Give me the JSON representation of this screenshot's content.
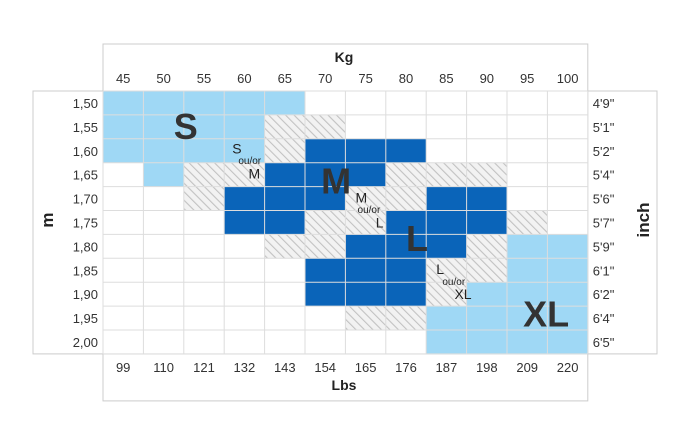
{
  "chart_data": {
    "type": "heatmap",
    "title": "",
    "x_top": {
      "label": "Kg",
      "categories": [
        "45",
        "50",
        "55",
        "60",
        "65",
        "70",
        "75",
        "80",
        "85",
        "90",
        "95",
        "100"
      ]
    },
    "x_bottom": {
      "label": "Lbs",
      "categories": [
        "99",
        "110",
        "121",
        "132",
        "143",
        "154",
        "165",
        "176",
        "187",
        "198",
        "209",
        "220"
      ]
    },
    "y_left": {
      "label": "m",
      "categories": [
        "1,50",
        "1,55",
        "1,60",
        "1,65",
        "1,70",
        "1,75",
        "1,80",
        "1,85",
        "1,90",
        "1,95",
        "2,00"
      ]
    },
    "y_right": {
      "label": "inch",
      "categories": [
        "4'9\"",
        "5'1\"",
        "5'2\"",
        "5'4\"",
        "5'6\"",
        "5'7\"",
        "5'9\"",
        "6'1\"",
        "6'2\"",
        "6'4\"",
        "6'5\""
      ]
    },
    "legend": {
      "S": "light blue",
      "M": "dark blue",
      "L": "dark blue",
      "XL": "light blue",
      "overlap": "hatched"
    },
    "colors": {
      "light": "#9fd8f5",
      "dark": "#0a64b9",
      "hatch_bg": "#f2f2f2",
      "hatch_line": "#c2c2c2",
      "grid": "#dddddd",
      "frame": "#cccccc"
    },
    "cells": {
      "S": [
        [
          0,
          0
        ],
        [
          1,
          0
        ],
        [
          2,
          0
        ],
        [
          3,
          0
        ],
        [
          4,
          0
        ],
        [
          0,
          1
        ],
        [
          1,
          1
        ],
        [
          2,
          1
        ],
        [
          3,
          1
        ],
        [
          0,
          2
        ],
        [
          1,
          2
        ],
        [
          2,
          2
        ],
        [
          3,
          2
        ],
        [
          1,
          3
        ]
      ],
      "M": [
        [
          5,
          2
        ],
        [
          6,
          2
        ],
        [
          7,
          2
        ],
        [
          4,
          3
        ],
        [
          5,
          3
        ],
        [
          6,
          3
        ],
        [
          3,
          4
        ],
        [
          4,
          4
        ],
        [
          5,
          4
        ],
        [
          3,
          5
        ],
        [
          4,
          5
        ]
      ],
      "L": [
        [
          8,
          4
        ],
        [
          9,
          4
        ],
        [
          7,
          5
        ],
        [
          8,
          5
        ],
        [
          9,
          5
        ],
        [
          6,
          6
        ],
        [
          7,
          6
        ],
        [
          8,
          6
        ],
        [
          5,
          7
        ],
        [
          6,
          7
        ],
        [
          7,
          7
        ],
        [
          5,
          8
        ],
        [
          6,
          8
        ],
        [
          7,
          8
        ]
      ],
      "XL": [
        [
          10,
          6
        ],
        [
          11,
          6
        ],
        [
          10,
          7
        ],
        [
          11,
          7
        ],
        [
          9,
          8
        ],
        [
          10,
          8
        ],
        [
          11,
          8
        ],
        [
          8,
          9
        ],
        [
          9,
          9
        ],
        [
          10,
          9
        ],
        [
          11,
          9
        ],
        [
          8,
          10
        ],
        [
          9,
          10
        ],
        [
          10,
          10
        ],
        [
          11,
          10
        ]
      ],
      "overlap": [
        [
          4,
          1
        ],
        [
          5,
          1
        ],
        [
          4,
          2
        ],
        [
          2,
          3
        ],
        [
          3,
          3
        ],
        [
          7,
          3
        ],
        [
          8,
          3
        ],
        [
          9,
          3
        ],
        [
          2,
          4
        ],
        [
          6,
          4
        ],
        [
          7,
          4
        ],
        [
          5,
          5
        ],
        [
          6,
          5
        ],
        [
          10,
          5
        ],
        [
          4,
          6
        ],
        [
          5,
          6
        ],
        [
          9,
          6
        ],
        [
          8,
          7
        ],
        [
          9,
          7
        ],
        [
          8,
          8
        ],
        [
          6,
          9
        ],
        [
          7,
          9
        ]
      ]
    },
    "labels": [
      {
        "text": "S",
        "kind": "big",
        "col": 1.75,
        "row": 1.6,
        "size": "big"
      },
      {
        "text": "M",
        "kind": "big",
        "col": 5.4,
        "row": 3.9,
        "size": "big"
      },
      {
        "text": "L",
        "kind": "big",
        "col": 7.5,
        "row": 6.3,
        "size": "big"
      },
      {
        "text": "XL",
        "kind": "big",
        "col": 10.4,
        "row": 9.45,
        "size": "big"
      },
      {
        "text": "S",
        "kind": "small",
        "col": 3.2,
        "row": 2.45
      },
      {
        "text": "ou/or",
        "kind": "tiny",
        "col": 3.35,
        "row": 2.95
      },
      {
        "text": "M",
        "kind": "small",
        "col": 3.6,
        "row": 3.5
      },
      {
        "text": "M",
        "kind": "small",
        "col": 6.25,
        "row": 4.5
      },
      {
        "text": "ou/or",
        "kind": "tiny",
        "col": 6.3,
        "row": 5.0
      },
      {
        "text": "L",
        "kind": "small",
        "col": 6.75,
        "row": 5.55
      },
      {
        "text": "L",
        "kind": "small",
        "col": 8.25,
        "row": 7.5
      },
      {
        "text": "ou/or",
        "kind": "tiny",
        "col": 8.4,
        "row": 8.0
      },
      {
        "text": "XL",
        "kind": "small",
        "col": 8.7,
        "row": 8.55
      }
    ]
  }
}
